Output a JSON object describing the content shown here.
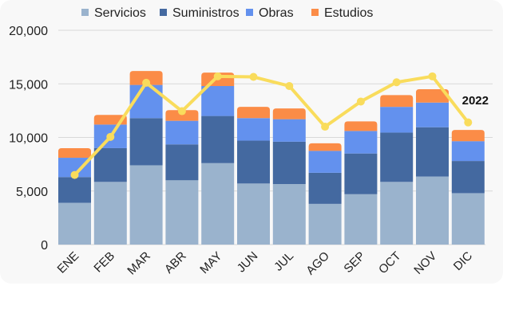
{
  "chart_data": {
    "type": "bar",
    "stacked": true,
    "categories": [
      "ENE",
      "FEB",
      "MAR",
      "ABR",
      "MAY",
      "JUN",
      "JUL",
      "AGO",
      "SEP",
      "OCT",
      "NOV",
      "DIC"
    ],
    "series": [
      {
        "name": "Servicios",
        "color": "#9AB3CD",
        "values": [
          3900,
          5850,
          7400,
          6000,
          7600,
          5700,
          5650,
          3800,
          4700,
          5850,
          6350,
          4800
        ]
      },
      {
        "name": "Suministros",
        "color": "#4469A0",
        "values": [
          2400,
          3150,
          4400,
          3350,
          4400,
          4000,
          3950,
          2900,
          3800,
          4600,
          4600,
          3000
        ]
      },
      {
        "name": "Obras",
        "color": "#6391EE",
        "values": [
          1800,
          2200,
          3100,
          2200,
          2800,
          2100,
          2100,
          2050,
          2100,
          2400,
          2300,
          1850
        ]
      },
      {
        "name": "Estudios",
        "color": "#FB8C47",
        "values": [
          900,
          900,
          1300,
          1000,
          1250,
          1050,
          1000,
          700,
          900,
          1100,
          1250,
          1050
        ]
      }
    ],
    "line": {
      "name": "2022",
      "color": "#F9DC5C",
      "values": [
        6500,
        10050,
        15100,
        12450,
        15700,
        15650,
        14800,
        11000,
        13350,
        15150,
        15700,
        11400
      ]
    },
    "ylim": [
      0,
      20000
    ],
    "yticks": [
      "0",
      "5,000",
      "10,000",
      "15,000",
      "20,000"
    ],
    "ytick_values": [
      0,
      5000,
      10000,
      15000,
      20000
    ],
    "grid": true,
    "legend": "top"
  }
}
